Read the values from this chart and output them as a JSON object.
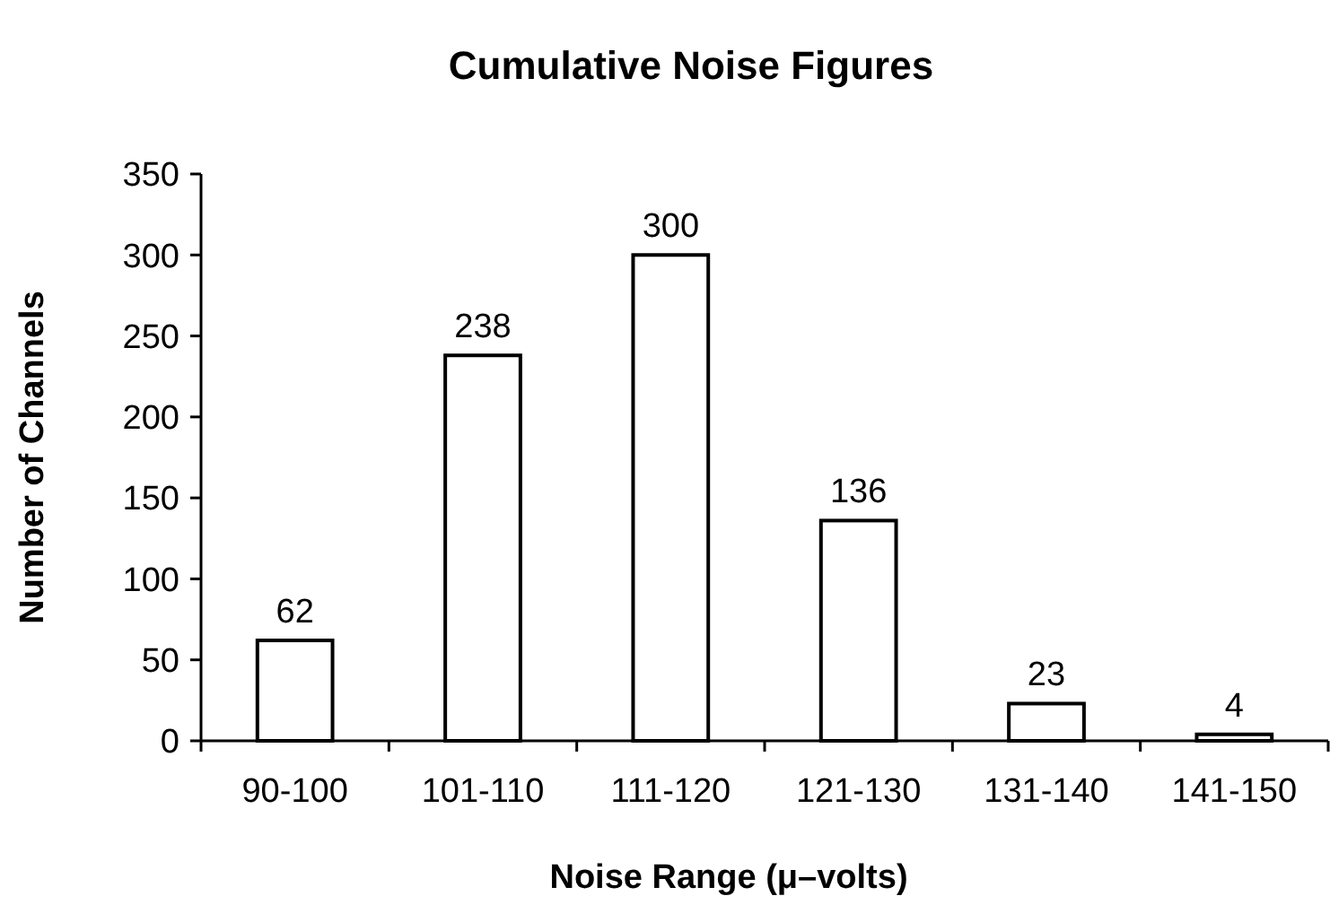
{
  "chart_data": {
    "type": "bar",
    "title": "Cumulative Noise Figures",
    "xlabel": "Noise Range (μ–volts)",
    "ylabel": "Number of Channels",
    "categories": [
      "90-100",
      "101-110",
      "111-120",
      "121-130",
      "131-140",
      "141-150"
    ],
    "values": [
      62,
      238,
      300,
      136,
      23,
      4
    ],
    "color": "#ffffff",
    "ylim": [
      0,
      350
    ],
    "yticks": [
      0,
      50,
      100,
      150,
      200,
      250,
      300,
      350
    ],
    "data_labels": true
  }
}
